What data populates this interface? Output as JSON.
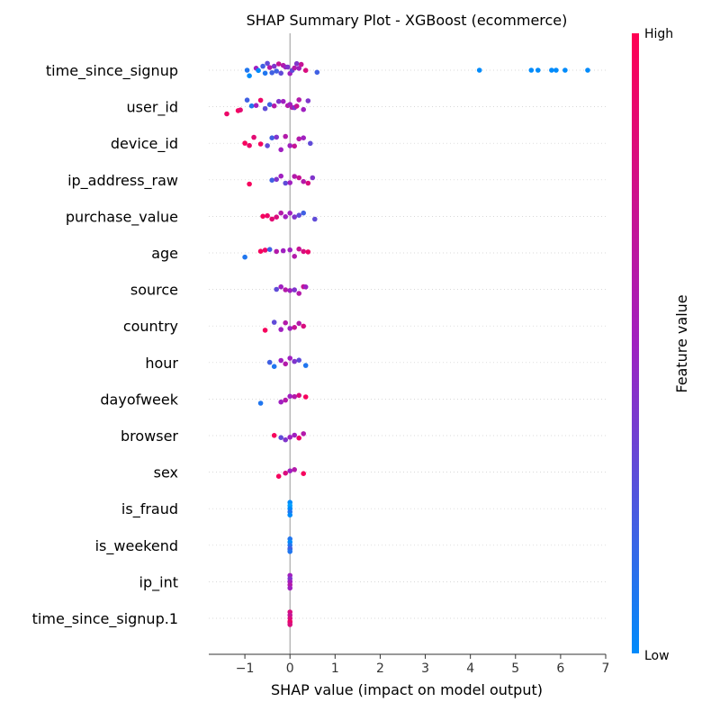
{
  "chart_data": {
    "type": "scatter",
    "title": "SHAP Summary Plot - XGBoost (ecommerce)",
    "xlabel": "SHAP value (impact on model output)",
    "xlim": [
      -1.8,
      7
    ],
    "xticks": [
      -1,
      0,
      1,
      2,
      3,
      4,
      5,
      6,
      7
    ],
    "colorbar": {
      "label": "Feature value",
      "high_label": "High",
      "low_label": "Low",
      "low_color": "#008bfb",
      "high_color": "#ff0052",
      "mid_color": "#a020c0"
    },
    "grid": false,
    "features": [
      {
        "name": "time_since_signup",
        "points": [
          [
            -0.95,
            0.1
          ],
          [
            -0.9,
            0.0
          ],
          [
            -0.75,
            0.5
          ],
          [
            -0.7,
            0.0
          ],
          [
            -0.6,
            0.2
          ],
          [
            -0.55,
            0.1
          ],
          [
            -0.5,
            0.3
          ],
          [
            -0.45,
            0.6
          ],
          [
            -0.4,
            0.2
          ],
          [
            -0.35,
            0.4
          ],
          [
            -0.3,
            0.2
          ],
          [
            -0.25,
            0.7
          ],
          [
            -0.2,
            0.3
          ],
          [
            -0.15,
            0.6
          ],
          [
            -0.1,
            0.5
          ],
          [
            -0.05,
            0.4
          ],
          [
            0.0,
            0.5
          ],
          [
            0.05,
            0.3
          ],
          [
            0.1,
            0.6
          ],
          [
            0.15,
            0.4
          ],
          [
            0.2,
            0.5
          ],
          [
            0.25,
            0.7
          ],
          [
            0.35,
            0.8
          ],
          [
            0.6,
            0.2
          ],
          [
            4.2,
            0.0
          ],
          [
            5.35,
            0.0
          ],
          [
            5.5,
            0.0
          ],
          [
            5.8,
            0.0
          ],
          [
            5.9,
            0.0
          ],
          [
            6.1,
            0.0
          ],
          [
            6.6,
            0.0
          ]
        ]
      },
      {
        "name": "user_id",
        "points": [
          [
            -1.4,
            0.9
          ],
          [
            -1.15,
            0.95
          ],
          [
            -1.1,
            0.85
          ],
          [
            -0.95,
            0.2
          ],
          [
            -0.85,
            0.1
          ],
          [
            -0.75,
            0.5
          ],
          [
            -0.65,
            0.9
          ],
          [
            -0.55,
            0.3
          ],
          [
            -0.45,
            0.2
          ],
          [
            -0.35,
            0.6
          ],
          [
            -0.25,
            0.4
          ],
          [
            -0.15,
            0.5
          ],
          [
            -0.05,
            0.6
          ],
          [
            0.0,
            0.5
          ],
          [
            0.05,
            0.6
          ],
          [
            0.1,
            0.4
          ],
          [
            0.15,
            0.7
          ],
          [
            0.2,
            0.6
          ],
          [
            0.3,
            0.5
          ],
          [
            0.4,
            0.4
          ]
        ]
      },
      {
        "name": "device_id",
        "points": [
          [
            -1.0,
            0.95
          ],
          [
            -0.9,
            0.9
          ],
          [
            -0.8,
            0.85
          ],
          [
            -0.65,
            0.95
          ],
          [
            -0.5,
            0.3
          ],
          [
            -0.4,
            0.2
          ],
          [
            -0.3,
            0.4
          ],
          [
            -0.2,
            0.5
          ],
          [
            -0.1,
            0.6
          ],
          [
            0.0,
            0.5
          ],
          [
            0.1,
            0.7
          ],
          [
            0.2,
            0.6
          ],
          [
            0.3,
            0.5
          ],
          [
            0.45,
            0.3
          ]
        ]
      },
      {
        "name": "ip_address_raw",
        "points": [
          [
            -0.9,
            0.95
          ],
          [
            -0.4,
            0.2
          ],
          [
            -0.3,
            0.4
          ],
          [
            -0.2,
            0.5
          ],
          [
            -0.1,
            0.3
          ],
          [
            0.0,
            0.5
          ],
          [
            0.1,
            0.6
          ],
          [
            0.2,
            0.7
          ],
          [
            0.3,
            0.6
          ],
          [
            0.4,
            0.8
          ],
          [
            0.5,
            0.4
          ]
        ]
      },
      {
        "name": "purchase_value",
        "points": [
          [
            -0.6,
            0.95
          ],
          [
            -0.5,
            0.9
          ],
          [
            -0.4,
            0.85
          ],
          [
            -0.3,
            0.8
          ],
          [
            -0.2,
            0.6
          ],
          [
            -0.1,
            0.5
          ],
          [
            0.0,
            0.5
          ],
          [
            0.1,
            0.4
          ],
          [
            0.2,
            0.3
          ],
          [
            0.3,
            0.2
          ],
          [
            0.55,
            0.3
          ]
        ]
      },
      {
        "name": "age",
        "points": [
          [
            -1.0,
            0.1
          ],
          [
            -0.65,
            0.95
          ],
          [
            -0.55,
            0.9
          ],
          [
            -0.45,
            0.2
          ],
          [
            -0.3,
            0.6
          ],
          [
            -0.15,
            0.5
          ],
          [
            0.0,
            0.5
          ],
          [
            0.1,
            0.6
          ],
          [
            0.2,
            0.7
          ],
          [
            0.3,
            0.8
          ],
          [
            0.4,
            0.9
          ]
        ]
      },
      {
        "name": "source",
        "points": [
          [
            -0.3,
            0.3
          ],
          [
            -0.2,
            0.5
          ],
          [
            -0.1,
            0.6
          ],
          [
            0.0,
            0.5
          ],
          [
            0.1,
            0.4
          ],
          [
            0.2,
            0.6
          ],
          [
            0.3,
            0.7
          ],
          [
            0.35,
            0.5
          ]
        ]
      },
      {
        "name": "country",
        "points": [
          [
            -0.55,
            0.95
          ],
          [
            -0.35,
            0.3
          ],
          [
            -0.2,
            0.5
          ],
          [
            -0.1,
            0.6
          ],
          [
            0.0,
            0.5
          ],
          [
            0.1,
            0.7
          ],
          [
            0.2,
            0.6
          ],
          [
            0.3,
            0.8
          ]
        ]
      },
      {
        "name": "hour",
        "points": [
          [
            -0.45,
            0.2
          ],
          [
            -0.35,
            0.1
          ],
          [
            -0.2,
            0.5
          ],
          [
            -0.1,
            0.6
          ],
          [
            0.0,
            0.5
          ],
          [
            0.1,
            0.4
          ],
          [
            0.2,
            0.3
          ],
          [
            0.35,
            0.1
          ]
        ]
      },
      {
        "name": "dayofweek",
        "points": [
          [
            -0.65,
            0.1
          ],
          [
            -0.2,
            0.5
          ],
          [
            -0.1,
            0.6
          ],
          [
            0.0,
            0.5
          ],
          [
            0.1,
            0.6
          ],
          [
            0.2,
            0.8
          ],
          [
            0.35,
            0.95
          ]
        ]
      },
      {
        "name": "browser",
        "points": [
          [
            -0.35,
            0.95
          ],
          [
            -0.2,
            0.3
          ],
          [
            -0.1,
            0.4
          ],
          [
            0.0,
            0.5
          ],
          [
            0.1,
            0.5
          ],
          [
            0.2,
            0.9
          ],
          [
            0.3,
            0.6
          ]
        ]
      },
      {
        "name": "sex",
        "points": [
          [
            -0.25,
            0.95
          ],
          [
            -0.1,
            0.8
          ],
          [
            0.0,
            0.5
          ],
          [
            0.1,
            0.6
          ],
          [
            0.3,
            0.95
          ]
        ]
      },
      {
        "name": "is_fraud",
        "points": [
          [
            0.0,
            0.0
          ]
        ]
      },
      {
        "name": "is_weekend",
        "points": [
          [
            0.0,
            0.1
          ]
        ]
      },
      {
        "name": "ip_int",
        "points": [
          [
            0.0,
            0.5
          ]
        ]
      },
      {
        "name": "time_since_signup.1",
        "points": [
          [
            0.0,
            0.8
          ]
        ]
      }
    ]
  }
}
